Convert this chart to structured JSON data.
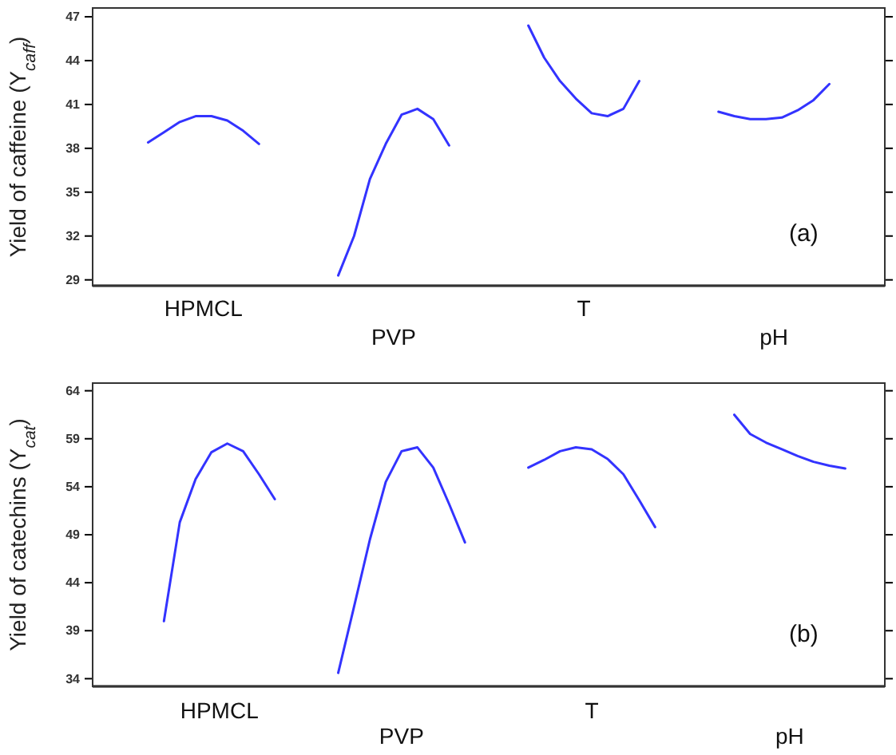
{
  "chart_data": [
    {
      "type": "line",
      "ylabel": "Yield of caffeine (Y$_{caff}$)",
      "annotations": [
        "HPMCL",
        "PVP",
        "T",
        "pH",
        "(a)"
      ],
      "categories": [
        null,
        null,
        null,
        null,
        null,
        null,
        null,
        null,
        null,
        null,
        null,
        null,
        null,
        null,
        null,
        null,
        null,
        null,
        null,
        null,
        null,
        null,
        null,
        null,
        null,
        null,
        null,
        null,
        null,
        null,
        null,
        null,
        null,
        null,
        null,
        null,
        null,
        null,
        null,
        null,
        null,
        null,
        null,
        null,
        null,
        null,
        null,
        null,
        null,
        null
      ],
      "ylim": [
        28.6,
        47.6
      ],
      "yticks": [
        29,
        32,
        35,
        38,
        41,
        44,
        47
      ],
      "grid": false,
      "legend": false,
      "marker": "none",
      "line_style": "solid",
      "series": [
        {
          "color": "#3333ff",
          "values": [
            null,
            null,
            null,
            38.4,
            39.1,
            39.8,
            40.2,
            40.2,
            39.9,
            39.2,
            38.3,
            null,
            null,
            null,
            null,
            null,
            null,
            null,
            null,
            null,
            null,
            null,
            null,
            null,
            null,
            null,
            null,
            null,
            null,
            null,
            null,
            null,
            null,
            null,
            null,
            null,
            null,
            null,
            null,
            null,
            null,
            null,
            null,
            null,
            null,
            null,
            null,
            null,
            null,
            null
          ]
        },
        {
          "color": "#3333ff",
          "values": [
            null,
            null,
            null,
            null,
            null,
            null,
            null,
            null,
            null,
            null,
            null,
            null,
            null,
            null,
            null,
            29.3,
            32.0,
            35.9,
            38.3,
            40.3,
            40.7,
            40.0,
            38.2,
            null,
            null,
            null,
            null,
            null,
            null,
            null,
            null,
            null,
            null,
            null,
            null,
            null,
            null,
            null,
            null,
            null,
            null,
            null,
            null,
            null,
            null,
            null,
            null,
            null,
            null,
            null
          ]
        },
        {
          "color": "#3333ff",
          "values": [
            null,
            null,
            null,
            null,
            null,
            null,
            null,
            null,
            null,
            null,
            null,
            null,
            null,
            null,
            null,
            null,
            null,
            null,
            null,
            null,
            null,
            null,
            null,
            null,
            null,
            null,
            null,
            46.4,
            44.2,
            42.6,
            41.4,
            40.4,
            40.2,
            40.7,
            42.6,
            null,
            null,
            null,
            null,
            null,
            null,
            null,
            null,
            null,
            null,
            null,
            null,
            null,
            null,
            null
          ]
        },
        {
          "color": "#3333ff",
          "values": [
            null,
            null,
            null,
            null,
            null,
            null,
            null,
            null,
            null,
            null,
            null,
            null,
            null,
            null,
            null,
            null,
            null,
            null,
            null,
            null,
            null,
            null,
            null,
            null,
            null,
            null,
            null,
            null,
            null,
            null,
            null,
            null,
            null,
            null,
            null,
            null,
            null,
            null,
            null,
            40.5,
            40.2,
            40.0,
            40.0,
            40.1,
            40.6,
            41.3,
            42.4,
            null,
            null,
            null
          ]
        }
      ]
    },
    {
      "type": "line",
      "ylabel": "Yield of catechins (Y$_{cat}$)",
      "annotations": [
        "HPMCL",
        "PVP",
        "T",
        "pH",
        "(b)"
      ],
      "categories": [
        null,
        null,
        null,
        null,
        null,
        null,
        null,
        null,
        null,
        null,
        null,
        null,
        null,
        null,
        null,
        null,
        null,
        null,
        null,
        null,
        null,
        null,
        null,
        null,
        null,
        null,
        null,
        null,
        null,
        null,
        null,
        null,
        null,
        null,
        null,
        null,
        null,
        null,
        null,
        null,
        null,
        null,
        null,
        null,
        null,
        null,
        null,
        null,
        null,
        null
      ],
      "ylim": [
        33.2,
        64.8
      ],
      "yticks": [
        34,
        39,
        44,
        49,
        54,
        59,
        64
      ],
      "grid": false,
      "legend": false,
      "marker": "none",
      "line_style": "solid",
      "series": [
        {
          "color": "#3333ff",
          "values": [
            null,
            null,
            null,
            null,
            40.0,
            50.3,
            54.8,
            57.6,
            58.5,
            57.7,
            55.3,
            52.7,
            null,
            null,
            null,
            null,
            null,
            null,
            null,
            null,
            null,
            null,
            null,
            null,
            null,
            null,
            null,
            null,
            null,
            null,
            null,
            null,
            null,
            null,
            null,
            null,
            null,
            null,
            null,
            null,
            null,
            null,
            null,
            null,
            null,
            null,
            null,
            null,
            null,
            null
          ]
        },
        {
          "color": "#3333ff",
          "values": [
            null,
            null,
            null,
            null,
            null,
            null,
            null,
            null,
            null,
            null,
            null,
            null,
            null,
            null,
            null,
            34.6,
            41.5,
            48.5,
            54.5,
            57.7,
            58.1,
            56.0,
            52.2,
            48.2,
            null,
            null,
            null,
            null,
            null,
            null,
            null,
            null,
            null,
            null,
            null,
            null,
            null,
            null,
            null,
            null,
            null,
            null,
            null,
            null,
            null,
            null,
            null,
            null,
            null,
            null
          ]
        },
        {
          "color": "#3333ff",
          "values": [
            null,
            null,
            null,
            null,
            null,
            null,
            null,
            null,
            null,
            null,
            null,
            null,
            null,
            null,
            null,
            null,
            null,
            null,
            null,
            null,
            null,
            null,
            null,
            null,
            null,
            null,
            null,
            56.0,
            56.8,
            57.7,
            58.1,
            57.9,
            56.9,
            55.3,
            52.6,
            49.8,
            null,
            null,
            null,
            null,
            null,
            null,
            null,
            null,
            null,
            null,
            null,
            null,
            null,
            null
          ]
        },
        {
          "color": "#3333ff",
          "values": [
            null,
            null,
            null,
            null,
            null,
            null,
            null,
            null,
            null,
            null,
            null,
            null,
            null,
            null,
            null,
            null,
            null,
            null,
            null,
            null,
            null,
            null,
            null,
            null,
            null,
            null,
            null,
            null,
            null,
            null,
            null,
            null,
            null,
            null,
            null,
            null,
            null,
            null,
            null,
            null,
            61.5,
            59.5,
            58.6,
            57.9,
            57.2,
            56.6,
            56.2,
            55.9,
            null,
            null
          ]
        }
      ]
    }
  ]
}
